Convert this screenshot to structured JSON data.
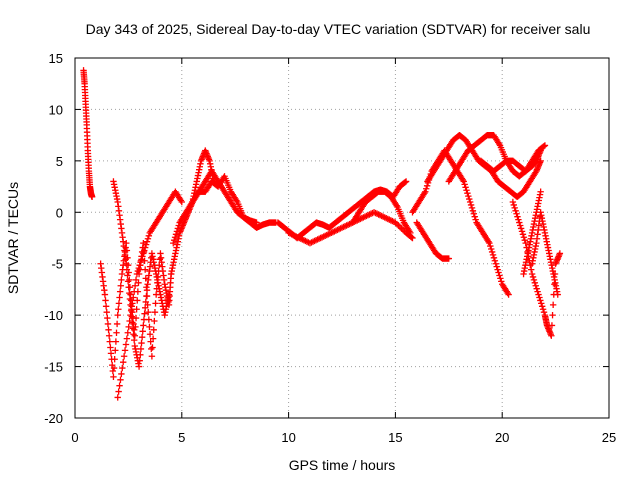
{
  "chart_data": {
    "type": "scatter",
    "title": "Day 343 of 2025, Sidereal Day-to-day VTEC variation (SDTVAR) for receiver salu",
    "xlabel": "GPS time / hours",
    "ylabel": "SDTVAR / TECUs",
    "xlim": [
      0,
      25
    ],
    "ylim": [
      -20,
      15
    ],
    "xticks": [
      0,
      5,
      10,
      15,
      20,
      25
    ],
    "yticks": [
      -20,
      -15,
      -10,
      -5,
      0,
      5,
      10,
      15
    ],
    "grid": true,
    "marker": "+",
    "series_color": "#ff0000",
    "series": [
      {
        "name": "t0",
        "x": [
          0.4,
          0.45,
          0.5,
          0.55,
          0.6,
          0.65,
          0.7,
          0.75,
          0.8
        ],
        "y": [
          13.8,
          12.5,
          10.5,
          8.5,
          6.0,
          4.0,
          2.5,
          1.8,
          1.5
        ]
      },
      {
        "name": "t1",
        "x": [
          1.2,
          1.4,
          1.6,
          1.8,
          2.0,
          2.2,
          2.4,
          2.6,
          2.8,
          3.0,
          3.2,
          3.4,
          3.6,
          3.8,
          4.0,
          4.2,
          4.4,
          4.5
        ],
        "y": [
          -5,
          -8,
          -12,
          -16,
          -10,
          -6,
          -3,
          -8,
          -12,
          -6,
          -3,
          -9,
          -14,
          -8,
          -4,
          -7,
          -9,
          -6
        ]
      },
      {
        "name": "t2",
        "x": [
          1.8,
          2.0,
          2.2,
          2.4,
          2.6,
          2.8,
          3.0,
          3.2,
          3.4,
          3.6,
          3.8,
          4.0,
          4.2,
          4.4
        ],
        "y": [
          3,
          1,
          -2,
          -5,
          -9,
          -13,
          -15,
          -11,
          -7,
          -4,
          -6,
          -8,
          -10,
          -8
        ]
      },
      {
        "name": "t3",
        "x": [
          2.0,
          2.3,
          2.6,
          2.9,
          3.2,
          3.5,
          3.8,
          4.1,
          4.4,
          4.7,
          5.0
        ],
        "y": [
          -18,
          -14,
          -10,
          -6,
          -4,
          -2,
          -1,
          0,
          1,
          2,
          1
        ]
      },
      {
        "name": "t4",
        "x": [
          4.5,
          4.7,
          4.9,
          5.1,
          5.3,
          5.5,
          5.7,
          5.9,
          6.1,
          6.3,
          6.5
        ],
        "y": [
          -6,
          -4,
          -2,
          -1,
          0,
          1,
          3,
          5,
          6,
          5,
          3
        ]
      },
      {
        "name": "t5",
        "x": [
          4.6,
          4.9,
          5.2,
          5.5,
          5.8,
          6.1,
          6.4,
          6.7,
          7.0,
          7.3,
          7.6,
          7.9,
          8.2,
          8.5,
          8.8,
          9.1,
          9.4
        ],
        "y": [
          -3,
          -1,
          0,
          1,
          2,
          2,
          3,
          2.5,
          3.5,
          2,
          1,
          -0.5,
          -1,
          -1.5,
          -1.2,
          -1,
          -1
        ]
      },
      {
        "name": "t6",
        "x": [
          5.5,
          5.8,
          6.1,
          6.4,
          6.7,
          7.0,
          7.3,
          7.6,
          7.9,
          8.2,
          8.5
        ],
        "y": [
          1,
          2,
          3,
          4,
          3,
          2,
          1,
          0,
          -0.5,
          -0.8,
          -1
        ]
      },
      {
        "name": "t7",
        "x": [
          9.5,
          9.8,
          10.1,
          10.4,
          10.7,
          11.0,
          11.3,
          11.6,
          11.9,
          12.2,
          12.5,
          12.8,
          13.1,
          13.4,
          13.7,
          14.0,
          14.3,
          14.6,
          14.9,
          15.2,
          15.5
        ],
        "y": [
          -1,
          -1.5,
          -2,
          -2.5,
          -2,
          -1.5,
          -1,
          -1.2,
          -1.5,
          -1,
          -0.5,
          0,
          0.5,
          1,
          1.5,
          2,
          2.2,
          2,
          1.5,
          2.5,
          3
        ]
      },
      {
        "name": "t8",
        "x": [
          10.0,
          10.5,
          11.0,
          11.5,
          12.0,
          12.5,
          13.0,
          13.5,
          14.0,
          14.5,
          15.0,
          15.5,
          15.8
        ],
        "y": [
          -2,
          -2.5,
          -3,
          -2.5,
          -2,
          -1.5,
          -1,
          -0.5,
          0,
          -0.5,
          -1,
          -2,
          -2.5
        ]
      },
      {
        "name": "t9",
        "x": [
          13.0,
          13.3,
          13.6,
          13.9,
          14.2,
          14.5,
          14.8,
          15.1,
          15.4,
          15.7
        ],
        "y": [
          -1,
          0,
          1,
          1.5,
          2,
          2,
          1.5,
          0.5,
          -1,
          -2
        ]
      },
      {
        "name": "t10",
        "x": [
          15.8,
          16.1,
          16.4,
          16.7,
          17.0,
          17.3,
          17.6,
          17.9,
          18.2,
          18.5,
          18.8,
          19.1,
          19.4,
          19.7,
          20.0,
          20.3
        ],
        "y": [
          0,
          1,
          2,
          4,
          5,
          6,
          5,
          4,
          3,
          1,
          -1,
          -2,
          -3,
          -5,
          -7,
          -8
        ]
      },
      {
        "name": "t11",
        "x": [
          16.5,
          16.8,
          17.1,
          17.4,
          17.7,
          18.0,
          18.3,
          18.6,
          18.9,
          19.2,
          19.5,
          19.8,
          20.1,
          20.4,
          20.7,
          21.0,
          21.3,
          21.6,
          21.8
        ],
        "y": [
          3,
          4,
          5,
          6,
          7,
          7.5,
          7,
          6,
          5,
          4.5,
          4,
          3,
          2.5,
          2,
          1.5,
          2,
          3,
          4,
          5
        ]
      },
      {
        "name": "t12",
        "x": [
          17.5,
          17.8,
          18.1,
          18.4,
          18.7,
          19.0,
          19.3,
          19.6,
          19.9,
          20.2,
          20.5,
          20.8,
          21.1,
          21.4,
          21.7,
          22.0
        ],
        "y": [
          3,
          4,
          5,
          6,
          6.5,
          7,
          7.5,
          7.5,
          6.5,
          5,
          4,
          3.5,
          4,
          5,
          6,
          6.5
        ]
      },
      {
        "name": "t13",
        "x": [
          16.0,
          16.3,
          16.6,
          16.9,
          17.2,
          17.5
        ],
        "y": [
          -1,
          -2,
          -3,
          -4,
          -4.5,
          -4.5
        ]
      },
      {
        "name": "t14",
        "x": [
          19.0,
          19.3,
          19.6,
          19.9,
          20.2,
          20.5,
          20.8,
          21.1,
          21.4,
          21.6,
          21.8
        ],
        "y": [
          5,
          4.5,
          4,
          4.5,
          5,
          5,
          4.5,
          4,
          4.5,
          5,
          6
        ]
      },
      {
        "name": "t15",
        "x": [
          20.5,
          20.8,
          21.1,
          21.4,
          21.7,
          22.0,
          22.1,
          22.3,
          22.5,
          22.7
        ],
        "y": [
          1,
          -1,
          -3,
          -6,
          -8,
          -10,
          -11,
          -12,
          -5,
          -4
        ]
      },
      {
        "name": "t16",
        "x": [
          21.4,
          21.6,
          21.8,
          22.0,
          22.2,
          22.4,
          22.6
        ],
        "y": [
          -5,
          -3,
          0,
          -2,
          -4,
          -6,
          -8
        ]
      },
      {
        "name": "t17",
        "x": [
          21.0,
          21.2,
          21.4,
          21.6,
          21.8
        ],
        "y": [
          -6,
          -4,
          -2,
          0,
          2
        ]
      }
    ]
  }
}
